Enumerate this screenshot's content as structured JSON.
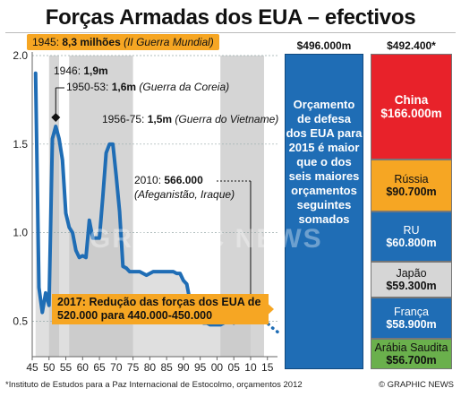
{
  "title": "Forças Armadas dos EUA – efectivos",
  "colors": {
    "line": "#1f6db5",
    "war_band": "#d0d0d0",
    "accent": "#f6a623",
    "us_bar": "#1f6db5"
  },
  "annotations": {
    "ww2_prefix": "1945:",
    "ww2_value": "8,3 milhões",
    "ww2_note": "(II Guerra Mundial)",
    "y1946_prefix": "1946:",
    "y1946_value": "1,9m",
    "korea_prefix": "1950-53:",
    "korea_value": "1,6m",
    "korea_note": "(Guerra da Coreia)",
    "vietnam_prefix": "1956-75:",
    "vietnam_value": "1,5m",
    "vietnam_note": "(Guerra do Vietname)",
    "y2010_prefix": "2010:",
    "y2010_value": "566.000",
    "y2010_note": "(Afeganistão, Iraque)",
    "reduction": "2017: Redução das forças dos EUA de 520.000 para 440.000-450.000"
  },
  "budget": {
    "us_header": "$496.000m",
    "others_header": "$492.400*",
    "us_text": "Orçamento de defesa dos EUA para 2015 é maior que o dos seis maiores orçamentos seguintes somados",
    "countries": [
      {
        "name": "China",
        "amount": "$166.000m",
        "color": "#e8222a",
        "text": "#ffffff"
      },
      {
        "name": "Rússia",
        "amount": "$90.700m",
        "color": "#f6a623",
        "text": "#111111"
      },
      {
        "name": "RU",
        "amount": "$60.800m",
        "color": "#1f6db5",
        "text": "#ffffff"
      },
      {
        "name": "Japão",
        "amount": "$59.300m",
        "color": "#d6d6d6",
        "text": "#111111"
      },
      {
        "name": "França",
        "amount": "$58.900m",
        "color": "#1f6db5",
        "text": "#ffffff"
      },
      {
        "name": "Arábia Saudita",
        "amount": "$56.700m",
        "color": "#6ab04c",
        "text": "#111111"
      }
    ]
  },
  "footer": {
    "source": "*Instituto de Estudos para a Paz Internacional de Estocolmo, orçamentos 2012",
    "credit": "© GRAPHIC NEWS"
  },
  "watermark": "GRAPHIC NEWS",
  "chart_data": {
    "type": "line",
    "title": "Forças Armadas dos EUA – efectivos",
    "ylabel": "",
    "xlabel": "",
    "ylim": [
      0.3,
      2.0
    ],
    "xlim": [
      1945,
      2018
    ],
    "y_ticks": [
      "0.5",
      "1.0",
      "1.5",
      "2.0"
    ],
    "y_tick_values": [
      0.5,
      1.0,
      1.5,
      2.0
    ],
    "x_ticks": [
      "45",
      "50",
      "55",
      "60",
      "65",
      "70",
      "75",
      "80",
      "85",
      "90",
      "95",
      "00",
      "05",
      "10",
      "15"
    ],
    "x_tick_values": [
      1945,
      1950,
      1955,
      1960,
      1965,
      1970,
      1975,
      1980,
      1985,
      1990,
      1995,
      2000,
      2005,
      2010,
      2015
    ],
    "war_periods": [
      [
        1950,
        1953
      ],
      [
        1956,
        1975
      ],
      [
        2001,
        2014
      ]
    ],
    "series": [
      {
        "x": [
          1946,
          1947,
          1948,
          1949,
          1950,
          1951,
          1952,
          1953,
          1954,
          1955,
          1956,
          1957,
          1958,
          1959,
          1960,
          1961,
          1962,
          1963,
          1964,
          1965,
          1966,
          1967,
          1968,
          1969,
          1970,
          1971,
          1972,
          1973,
          1974,
          1975,
          1976,
          1977,
          1978,
          1979,
          1980,
          1981,
          1982,
          1983,
          1984,
          1985,
          1986,
          1987,
          1988,
          1989,
          1990,
          1991,
          1992,
          1993,
          1994,
          1995,
          1996,
          1997,
          1998,
          1999,
          2000,
          2001,
          2002,
          2003,
          2004,
          2005,
          2006,
          2007,
          2008,
          2009,
          2010
        ],
        "values": [
          1.9,
          0.69,
          0.55,
          0.66,
          0.59,
          1.53,
          1.6,
          1.53,
          1.41,
          1.11,
          1.03,
          1.0,
          0.9,
          0.86,
          0.87,
          0.86,
          1.07,
          0.97,
          0.97,
          0.97,
          1.2,
          1.45,
          1.5,
          1.5,
          1.32,
          1.12,
          0.81,
          0.8,
          0.78,
          0.78,
          0.78,
          0.78,
          0.77,
          0.76,
          0.77,
          0.78,
          0.78,
          0.78,
          0.78,
          0.78,
          0.78,
          0.78,
          0.77,
          0.77,
          0.73,
          0.71,
          0.61,
          0.57,
          0.54,
          0.51,
          0.49,
          0.49,
          0.48,
          0.48,
          0.48,
          0.48,
          0.49,
          0.5,
          0.5,
          0.49,
          0.51,
          0.52,
          0.54,
          0.55,
          0.57
        ]
      },
      {
        "x": [
          2010,
          2012,
          2014,
          2016,
          2018
        ],
        "values": [
          0.566,
          0.55,
          0.51,
          0.47,
          0.44
        ],
        "style": "dotted"
      }
    ]
  }
}
